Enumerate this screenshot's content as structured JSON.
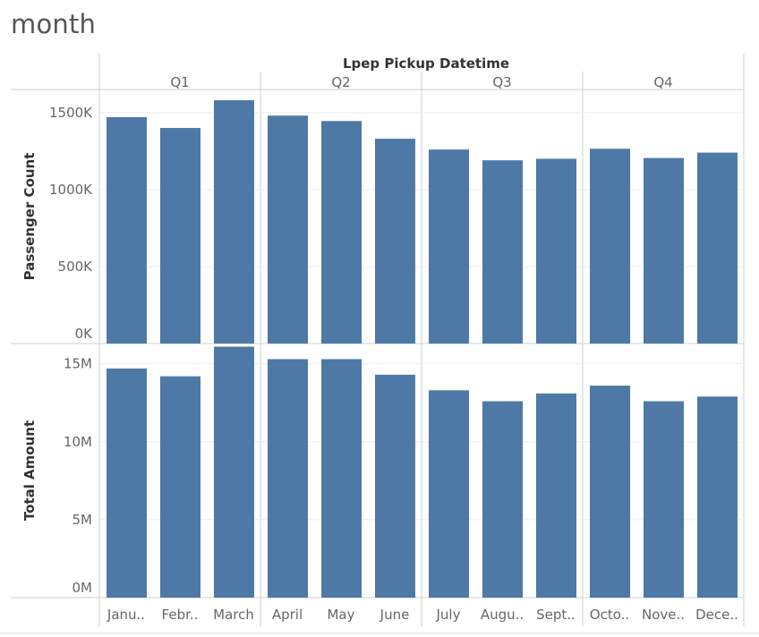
{
  "title": "month",
  "chart_data": {
    "type": "bar",
    "column_header": "Lpep Pickup Datetime",
    "quarters": [
      "Q1",
      "Q2",
      "Q3",
      "Q4"
    ],
    "months_per_quarter": [
      3,
      3,
      3,
      3
    ],
    "categories": [
      "Janu..",
      "Febr..",
      "March",
      "April",
      "May",
      "June",
      "July",
      "Augu..",
      "Sept..",
      "Octo..",
      "Nove..",
      "Dece.."
    ],
    "bar_color": "#4e79a7",
    "grid": true,
    "series": [
      {
        "name": "Passenger Count",
        "ylabel": "Passenger Count",
        "values": [
          1470000,
          1400000,
          1580000,
          1480000,
          1445000,
          1330000,
          1260000,
          1190000,
          1200000,
          1265000,
          1205000,
          1240000
        ],
        "ylim": [
          0,
          1650000
        ],
        "ticks": [
          0,
          500000,
          1000000,
          1500000
        ],
        "tick_labels": [
          "0K",
          "500K",
          "1000K",
          "1500K"
        ]
      },
      {
        "name": "Total Amount",
        "ylabel": "Total Amount",
        "values": [
          14700000,
          14200000,
          16100000,
          15300000,
          15300000,
          14300000,
          13300000,
          12600000,
          13100000,
          13600000,
          12600000,
          12900000
        ],
        "ylim": [
          0,
          16300000
        ],
        "ticks": [
          0,
          5000000,
          10000000,
          15000000
        ],
        "tick_labels": [
          "0M",
          "5M",
          "10M",
          "15M"
        ]
      }
    ]
  }
}
